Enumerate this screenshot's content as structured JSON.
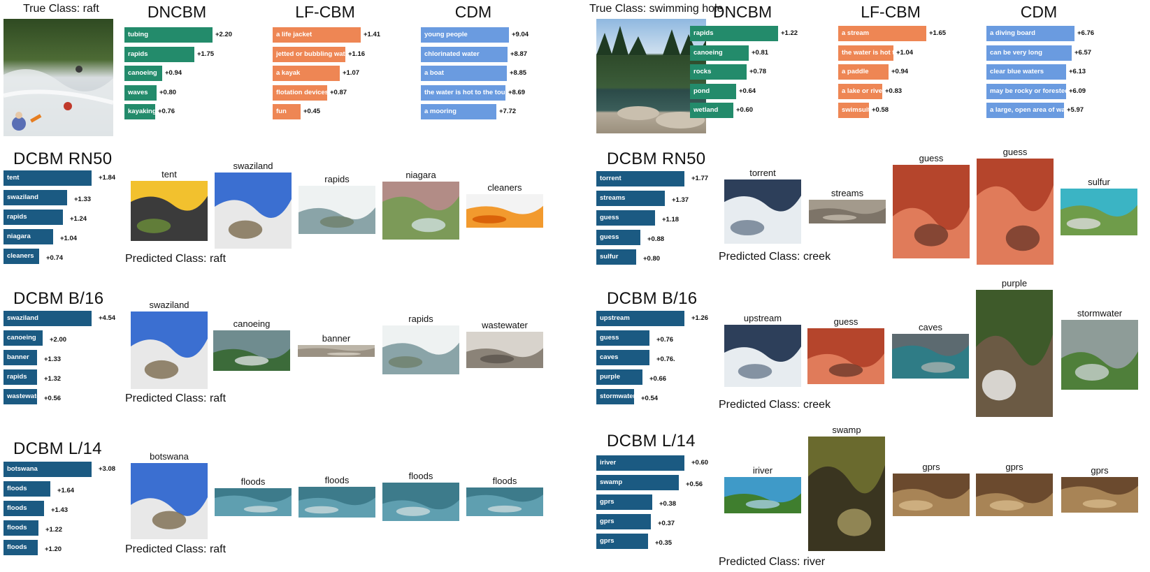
{
  "colors": {
    "dncbm": "#238b6b",
    "lfcbm": "#ee8654",
    "cdm": "#6a9be0",
    "dcbm": "#1b5a82"
  },
  "left": {
    "true_class": "True Class: raft",
    "methods": [
      {
        "title": "DNCBM",
        "bars": [
          {
            "label": "tubing",
            "value": 2.2,
            "text": "+2.20"
          },
          {
            "label": "rapids",
            "value": 1.75,
            "text": "+1.75"
          },
          {
            "label": "canoeing",
            "value": 0.94,
            "text": "+0.94"
          },
          {
            "label": "waves",
            "value": 0.8,
            "text": "+0.80"
          },
          {
            "label": "kayaking",
            "value": 0.76,
            "text": "+0.76"
          }
        ]
      },
      {
        "title": "LF-CBM",
        "bars": [
          {
            "label": "a life jacket",
            "value": 1.41,
            "text": "+1.41"
          },
          {
            "label": "jetted or bubbling water",
            "value": 1.16,
            "text": "+1.16"
          },
          {
            "label": "a kayak",
            "value": 1.07,
            "text": "+1.07"
          },
          {
            "label": "flotation devices",
            "value": 0.87,
            "text": "+0.87"
          },
          {
            "label": "fun",
            "value": 0.45,
            "text": "+0.45"
          }
        ]
      },
      {
        "title": "CDM",
        "bars": [
          {
            "label": "young people",
            "value": 9.04,
            "text": "+9.04"
          },
          {
            "label": "chlorinated water",
            "value": 8.87,
            "text": "+8.87"
          },
          {
            "label": "a boat",
            "value": 8.85,
            "text": "+8.85"
          },
          {
            "label": "the water is hot to the touch",
            "value": 8.69,
            "text": "+8.69"
          },
          {
            "label": "a mooring",
            "value": 7.72,
            "text": "+7.72"
          }
        ]
      }
    ],
    "dcbm": [
      {
        "title": "DCBM RN50",
        "predicted": "Predicted Class: raft",
        "bars": [
          {
            "label": "tent",
            "value": 1.84,
            "text": "+1.84"
          },
          {
            "label": "swaziland",
            "value": 1.33,
            "text": "+1.33"
          },
          {
            "label": "rapids",
            "value": 1.24,
            "text": "+1.24"
          },
          {
            "label": "niagara",
            "value": 1.04,
            "text": "+1.04"
          },
          {
            "label": "cleaners",
            "value": 0.74,
            "text": "+0.74"
          }
        ],
        "images": [
          "tent",
          "swaziland",
          "rapids",
          "niagara",
          "cleaners"
        ]
      },
      {
        "title": "DCBM B/16",
        "predicted": "Predicted Class: raft",
        "bars": [
          {
            "label": "swaziland",
            "value": 4.54,
            "text": "+4.54"
          },
          {
            "label": "canoeing",
            "value": 2.0,
            "text": "+2.00"
          },
          {
            "label": "banner",
            "value": 1.33,
            "text": "+1.33"
          },
          {
            "label": "rapids",
            "value": 1.32,
            "text": "+1.32"
          },
          {
            "label": "wastewater",
            "value": 0.56,
            "text": "+0.56"
          }
        ],
        "images": [
          "swaziland",
          "canoeing",
          "banner",
          "rapids",
          "wastewater"
        ]
      },
      {
        "title": "DCBM L/14",
        "predicted": "Predicted Class: raft",
        "bars": [
          {
            "label": "botswana",
            "value": 3.08,
            "text": "+3.08"
          },
          {
            "label": "floods",
            "value": 1.64,
            "text": "+1.64"
          },
          {
            "label": "floods",
            "value": 1.43,
            "text": "+1.43"
          },
          {
            "label": "floods",
            "value": 1.22,
            "text": "+1.22"
          },
          {
            "label": "floods",
            "value": 1.2,
            "text": "+1.20"
          }
        ],
        "images": [
          "botswana",
          "floods",
          "floods",
          "floods",
          "floods"
        ]
      }
    ]
  },
  "right": {
    "true_class": "True Class: swimming hole",
    "methods": [
      {
        "title": "DNCBM",
        "bars": [
          {
            "label": "rapids",
            "value": 1.22,
            "text": "+1.22"
          },
          {
            "label": "canoeing",
            "value": 0.81,
            "text": "+0.81"
          },
          {
            "label": "rocks",
            "value": 0.78,
            "text": "+0.78"
          },
          {
            "label": "pond",
            "value": 0.64,
            "text": "+0.64"
          },
          {
            "label": "wetland",
            "value": 0.6,
            "text": "+0.60"
          }
        ]
      },
      {
        "title": "LF-CBM",
        "bars": [
          {
            "label": "a stream",
            "value": 1.65,
            "text": "+1.65"
          },
          {
            "label": "the water is hot to",
            "value": 1.04,
            "text": "+1.04"
          },
          {
            "label": "a paddle",
            "value": 0.94,
            "text": "+0.94"
          },
          {
            "label": "a lake or river",
            "value": 0.83,
            "text": "+0.83"
          },
          {
            "label": "swimsuits",
            "value": 0.58,
            "text": "+0.58"
          }
        ]
      },
      {
        "title": "CDM",
        "bars": [
          {
            "label": "a diving board",
            "value": 6.76,
            "text": "+6.76"
          },
          {
            "label": "can be very long",
            "value": 6.57,
            "text": "+6.57"
          },
          {
            "label": "clear blue waters",
            "value": 6.13,
            "text": "+6.13"
          },
          {
            "label": "may be rocky or forested",
            "value": 6.09,
            "text": "+6.09"
          },
          {
            "label": "a large, open area of water",
            "value": 5.97,
            "text": "+5.97"
          }
        ]
      }
    ],
    "dcbm": [
      {
        "title": "DCBM RN50",
        "predicted": "Predicted Class: creek",
        "bars": [
          {
            "label": "torrent",
            "value": 1.77,
            "text": "+1.77"
          },
          {
            "label": "streams",
            "value": 1.37,
            "text": "+1.37"
          },
          {
            "label": "guess",
            "value": 1.18,
            "text": "+1.18"
          },
          {
            "label": "guess",
            "value": 0.88,
            "text": "+0.88"
          },
          {
            "label": "sulfur",
            "value": 0.8,
            "text": "+0.80"
          }
        ],
        "images": [
          "torrent",
          "streams",
          "guess",
          "guess",
          "sulfur"
        ]
      },
      {
        "title": "DCBM B/16",
        "predicted": "Predicted Class: creek",
        "bars": [
          {
            "label": "upstream",
            "value": 1.26,
            "text": "+1.26"
          },
          {
            "label": "guess",
            "value": 0.76,
            "text": "+0.76"
          },
          {
            "label": "caves",
            "value": 0.76,
            "text": "+0.76."
          },
          {
            "label": "purple",
            "value": 0.66,
            "text": "+0.66"
          },
          {
            "label": "stormwater",
            "value": 0.54,
            "text": "+0.54"
          }
        ],
        "images": [
          "upstream",
          "guess",
          "caves",
          "purple",
          "stormwater"
        ]
      },
      {
        "title": "DCBM L/14",
        "predicted": "Predicted Class: river",
        "bars": [
          {
            "label": "iriver",
            "value": 0.6,
            "text": "+0.60"
          },
          {
            "label": "swamp",
            "value": 0.56,
            "text": "+0.56"
          },
          {
            "label": "gprs",
            "value": 0.38,
            "text": "+0.38"
          },
          {
            "label": "gprs",
            "value": 0.37,
            "text": "+0.37"
          },
          {
            "label": "gprs",
            "value": 0.35,
            "text": "+0.35"
          }
        ],
        "images": [
          "iriver",
          "swamp",
          "gprs",
          "gprs",
          "gprs"
        ]
      }
    ]
  }
}
